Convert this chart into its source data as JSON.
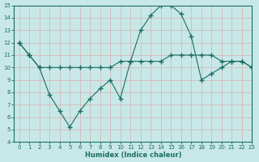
{
  "bg_color": "#c8e8e8",
  "grid_color": "#b0d0d0",
  "line_color": "#1a6e60",
  "xlabel": "Humidex (Indice chaleur)",
  "xlim": [
    -0.5,
    23
  ],
  "ylim": [
    4,
    15
  ],
  "xticks": [
    0,
    1,
    2,
    3,
    4,
    5,
    6,
    7,
    8,
    9,
    10,
    11,
    12,
    13,
    14,
    15,
    16,
    17,
    18,
    19,
    20,
    21,
    22,
    23
  ],
  "yticks": [
    4,
    5,
    6,
    7,
    8,
    9,
    10,
    11,
    12,
    13,
    14,
    15
  ],
  "line1_x": [
    0,
    1,
    2,
    3,
    4,
    5,
    6,
    7,
    8,
    9,
    10,
    11,
    12,
    13,
    14,
    15,
    16,
    17,
    18,
    19,
    20,
    21,
    22,
    23
  ],
  "line1_y": [
    12,
    11,
    10,
    10,
    10,
    10,
    10,
    10,
    10,
    10,
    10.5,
    10.5,
    10.5,
    10.5,
    10.5,
    11,
    11,
    11,
    11,
    11,
    10.5,
    10.5,
    10.5,
    10
  ],
  "line2_x": [
    0,
    1,
    2,
    3,
    4,
    5,
    6,
    7,
    8,
    9,
    10,
    11,
    12,
    13,
    14,
    15,
    16,
    17,
    18,
    19,
    20,
    21,
    22,
    23
  ],
  "line2_y": [
    12,
    11,
    10,
    7.8,
    6.5,
    5.2,
    6.5,
    7.5,
    8.3,
    9,
    7.5,
    10.5,
    13,
    14.2,
    15,
    15,
    14.3,
    12.5,
    9,
    9.5,
    10,
    10.5,
    10.5,
    10
  ]
}
